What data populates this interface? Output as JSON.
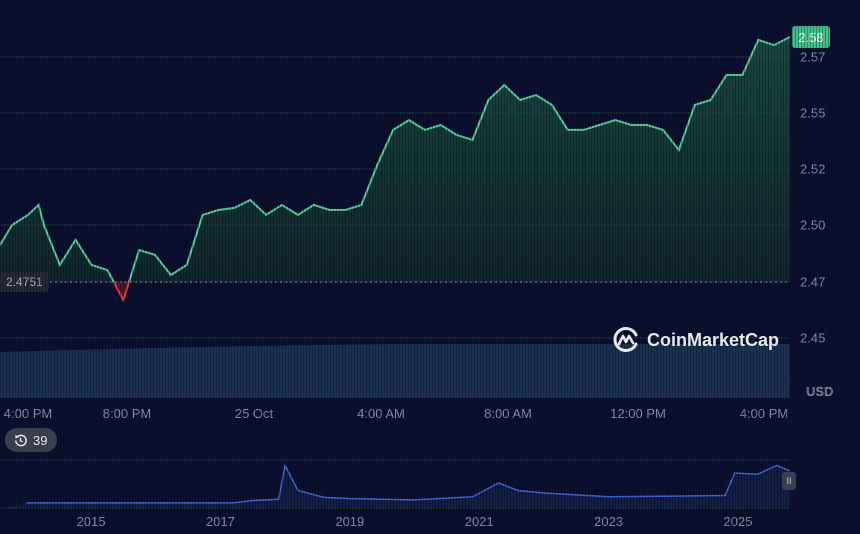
{
  "chart_data": {
    "type": "area",
    "title": "",
    "currency_label": "USD",
    "y_ticks": [
      "2.57",
      "2.55",
      "2.52",
      "2.50",
      "2.47",
      "2.45"
    ],
    "x_ticks": [
      "4:00 PM",
      "8:00 PM",
      "25 Oct",
      "4:00 AM",
      "8:00 AM",
      "12:00 PM",
      "4:00 PM"
    ],
    "last_price": "2.58",
    "baseline_price": "2.4751",
    "baseline_value": 2.4751,
    "grid": true,
    "colors": {
      "up": "#4fd59a",
      "down": "#ea3943",
      "volume": "#1b3152",
      "overview_line": "#3d6ae0",
      "background": "#0b1030"
    },
    "series": [
      {
        "times": [
          "15:00",
          "15:30",
          "16:00",
          "16:20",
          "16:30",
          "17:00",
          "17:30",
          "18:00",
          "18:30",
          "19:00",
          "19:30",
          "20:00",
          "20:30",
          "21:00",
          "21:30",
          "22:00",
          "22:30",
          "23:00",
          "23:30",
          "00:00",
          "00:30",
          "01:00",
          "01:30",
          "02:00",
          "02:30",
          "03:00",
          "03:30",
          "04:00",
          "04:30",
          "05:00",
          "05:30",
          "06:00",
          "06:30",
          "07:00",
          "07:30",
          "08:00",
          "08:30",
          "09:00",
          "09:30",
          "10:00",
          "10:30",
          "11:00",
          "11:30",
          "12:00",
          "12:30",
          "13:00",
          "13:30",
          "14:00",
          "14:30",
          "15:00",
          "15:30",
          "16:00"
        ],
        "values": [
          2.4909,
          2.4995,
          2.5038,
          2.5081,
          2.4995,
          2.4824,
          2.4931,
          2.4824,
          2.4802,
          2.4674,
          2.4888,
          2.4867,
          2.4781,
          2.4824,
          2.5038,
          2.5059,
          2.5068,
          2.5102,
          2.5038,
          2.5081,
          2.5038,
          2.5081,
          2.5059,
          2.5059,
          2.5081,
          2.5252,
          2.5402,
          2.5444,
          2.5402,
          2.5423,
          2.538,
          2.5359,
          2.553,
          2.5594,
          2.553,
          2.5551,
          2.5509,
          2.5402,
          2.5402,
          2.5423,
          2.5444,
          2.5423,
          2.5423,
          2.5402,
          2.5316,
          2.5509,
          2.553,
          2.5637,
          2.5637,
          2.5787,
          2.5765,
          2.58
        ]
      }
    ],
    "overview": {
      "x_ticks": [
        "2015",
        "2017",
        "2019",
        "2021",
        "2023",
        "2025"
      ],
      "years": [
        2014.0,
        2017.2,
        2017.5,
        2017.9,
        2018.0,
        2018.2,
        2018.6,
        2019.0,
        2020.0,
        2020.9,
        2021.3,
        2021.6,
        2022.0,
        2023.0,
        2024.0,
        2024.8,
        2024.95,
        2025.3,
        2025.6,
        2025.8
      ],
      "values": [
        0.005,
        0.005,
        0.2,
        0.3,
        3.0,
        1.0,
        0.45,
        0.35,
        0.25,
        0.5,
        1.6,
        1.0,
        0.8,
        0.5,
        0.55,
        0.6,
        2.4,
        2.3,
        3.0,
        2.58
      ]
    }
  },
  "history_badge": {
    "count": "39",
    "icon": "history-clock-icon"
  },
  "logo": {
    "text": "CoinMarketCap"
  }
}
